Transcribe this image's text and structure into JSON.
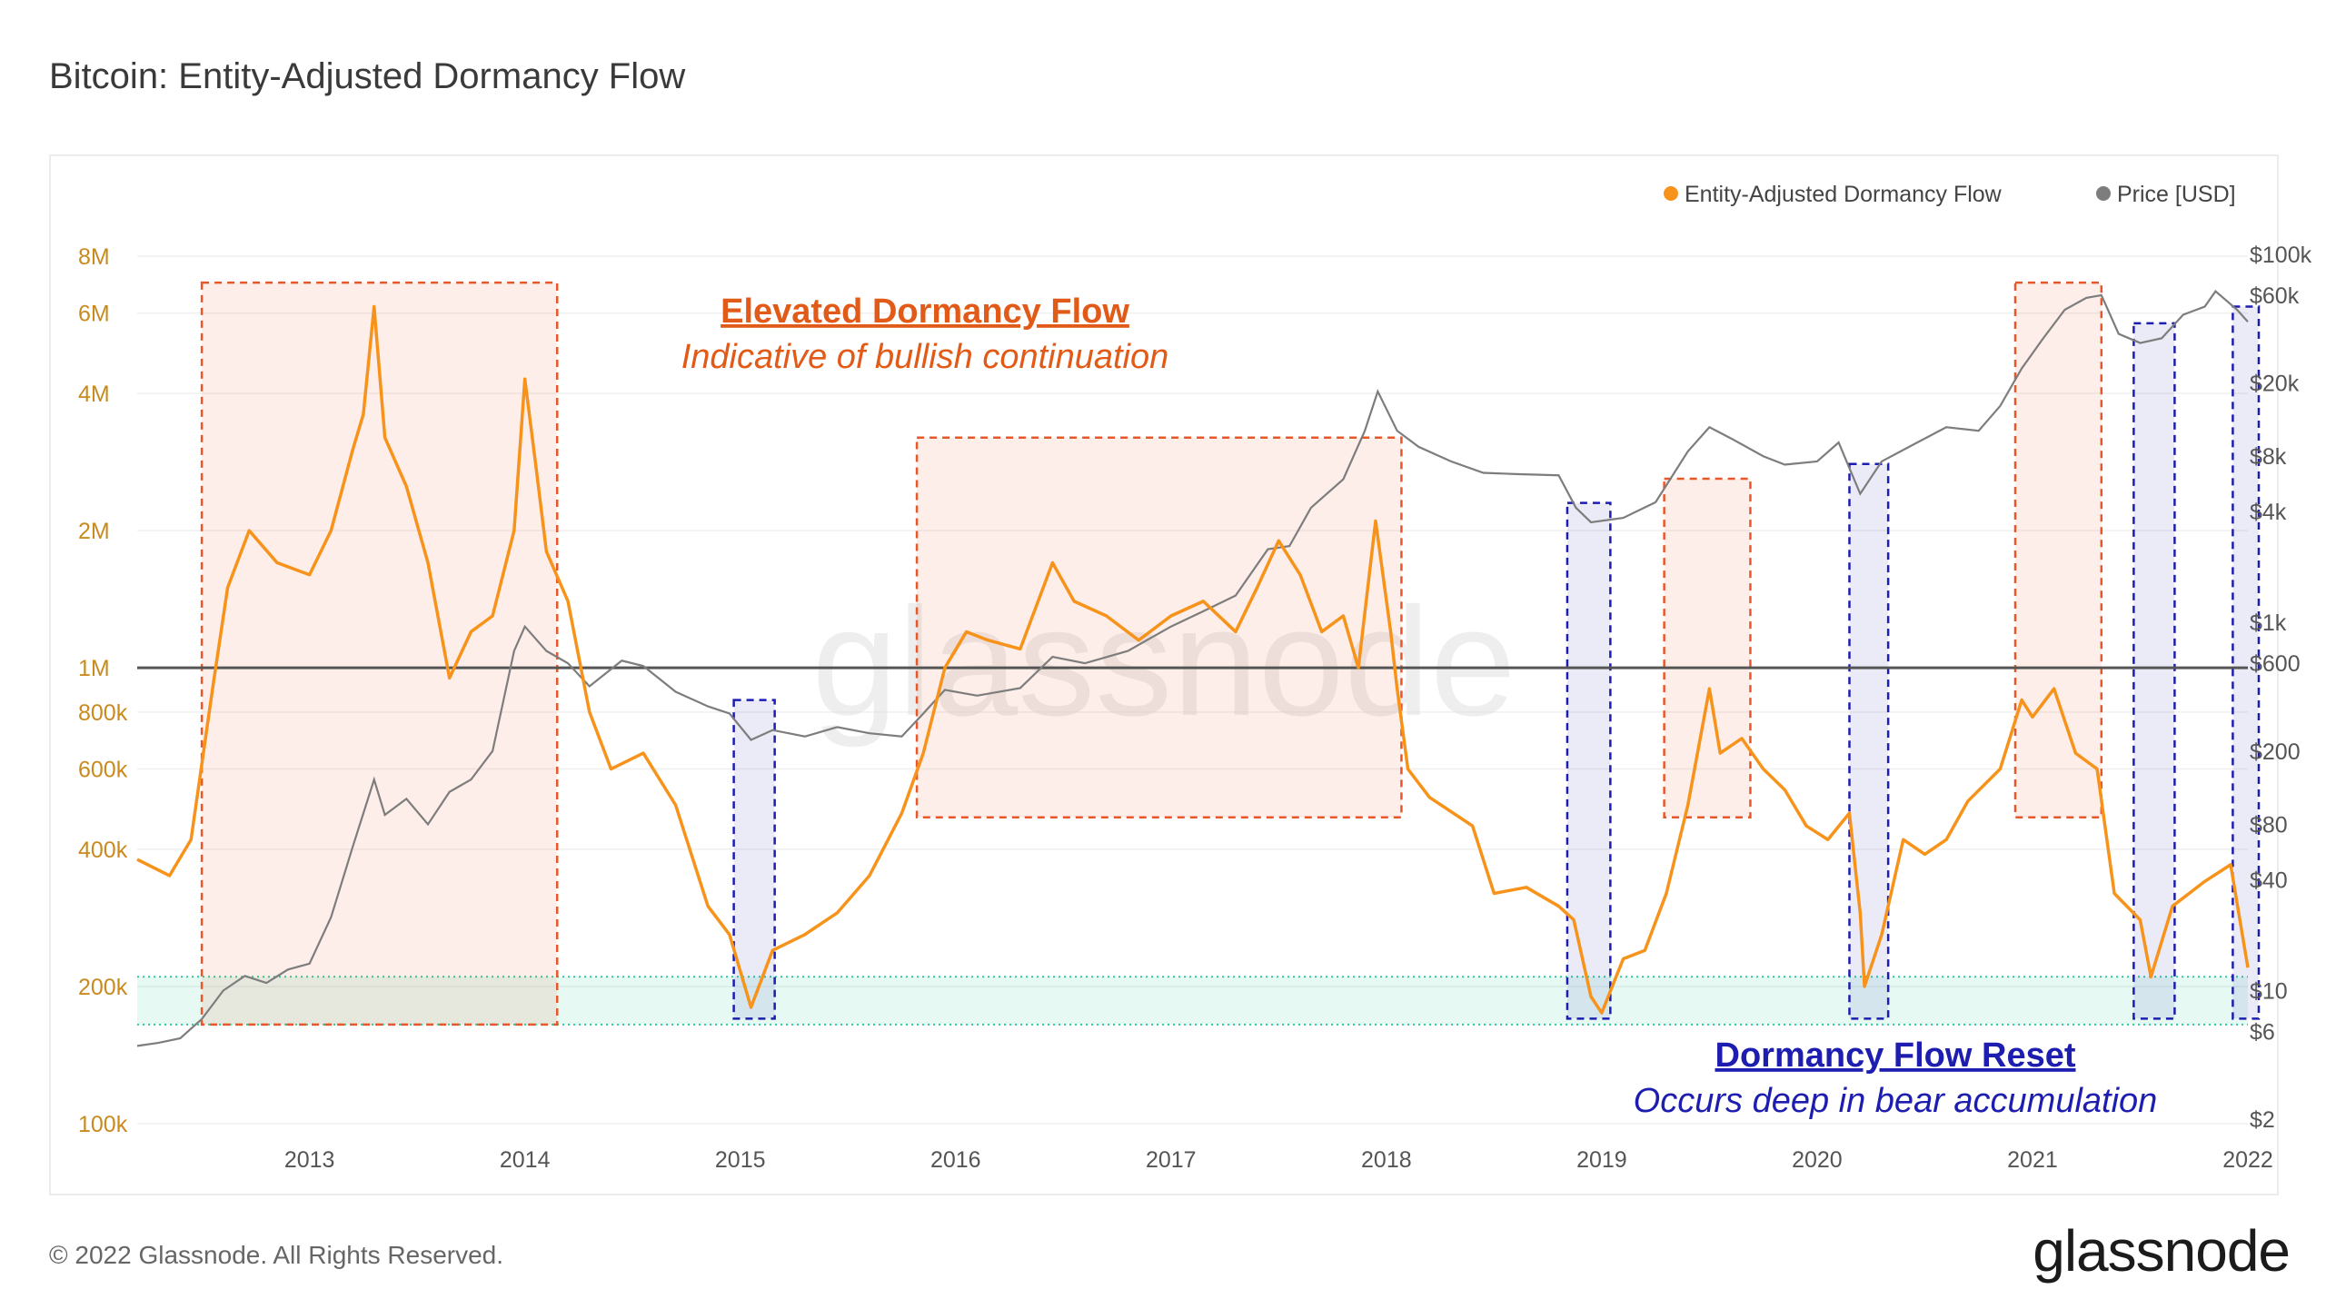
{
  "header": {
    "title": "Bitcoin: Entity-Adjusted Dormancy Flow"
  },
  "footer": {
    "copyright": "© 2022 Glassnode. All Rights Reserved.",
    "brand": "glassnode"
  },
  "watermark": "glassnode",
  "colors": {
    "dormancy": "#f7931a",
    "price": "#7d7d7d",
    "elevated_box": "#e8572a",
    "reset_box": "#1d1db0",
    "elevated_label": "#e15a17",
    "reset_label": "#1d1db0",
    "accum_band": "#2ecc9a"
  },
  "chart_data": {
    "type": "line",
    "legend": {
      "placement": "top-right",
      "items": [
        "Entity-Adjusted Dormancy Flow",
        "Price [USD]"
      ]
    },
    "x_axis": {
      "range": [
        2012.2,
        2022.0
      ],
      "ticks": [
        "2013",
        "2014",
        "2015",
        "2016",
        "2017",
        "2018",
        "2019",
        "2020",
        "2021",
        "2022"
      ]
    },
    "y_left": {
      "scale": "log",
      "range": [
        100000,
        8000000
      ],
      "ticks": [
        "100k",
        "200k",
        "400k",
        "600k",
        "800k",
        "1M",
        "2M",
        "4M",
        "6M",
        "8M"
      ]
    },
    "y_right": {
      "scale": "log",
      "range": [
        2,
        100000
      ],
      "ticks": [
        "$2",
        "$6",
        "$10",
        "$40",
        "$80",
        "$200",
        "$600",
        "$1k",
        "$4k",
        "$8k",
        "$20k",
        "$60k",
        "$100k"
      ]
    },
    "reference_line": {
      "axis": "left",
      "value": 1000000
    },
    "accumulation_band": {
      "axis": "left",
      "range": [
        165000,
        210000
      ]
    },
    "series": [
      {
        "name": "Entity-Adjusted Dormancy Flow",
        "axis": "left",
        "points": [
          [
            2012.2,
            380000
          ],
          [
            2012.35,
            350000
          ],
          [
            2012.45,
            420000
          ],
          [
            2012.55,
            900000
          ],
          [
            2012.62,
            1500000
          ],
          [
            2012.72,
            2000000
          ],
          [
            2012.85,
            1700000
          ],
          [
            2013.0,
            1600000
          ],
          [
            2013.1,
            2000000
          ],
          [
            2013.2,
            3000000
          ],
          [
            2013.25,
            3600000
          ],
          [
            2013.3,
            6200000
          ],
          [
            2013.35,
            3200000
          ],
          [
            2013.45,
            2500000
          ],
          [
            2013.55,
            1700000
          ],
          [
            2013.65,
            950000
          ],
          [
            2013.75,
            1200000
          ],
          [
            2013.85,
            1300000
          ],
          [
            2013.95,
            2000000
          ],
          [
            2014.0,
            4300000
          ],
          [
            2014.05,
            2800000
          ],
          [
            2014.1,
            1800000
          ],
          [
            2014.2,
            1400000
          ],
          [
            2014.3,
            800000
          ],
          [
            2014.4,
            600000
          ],
          [
            2014.55,
            650000
          ],
          [
            2014.7,
            500000
          ],
          [
            2014.85,
            300000
          ],
          [
            2014.95,
            260000
          ],
          [
            2015.05,
            180000
          ],
          [
            2015.15,
            240000
          ],
          [
            2015.3,
            260000
          ],
          [
            2015.45,
            290000
          ],
          [
            2015.6,
            350000
          ],
          [
            2015.75,
            480000
          ],
          [
            2015.85,
            650000
          ],
          [
            2015.95,
            1000000
          ],
          [
            2016.05,
            1200000
          ],
          [
            2016.15,
            1150000
          ],
          [
            2016.3,
            1100000
          ],
          [
            2016.45,
            1700000
          ],
          [
            2016.55,
            1400000
          ],
          [
            2016.7,
            1300000
          ],
          [
            2016.85,
            1150000
          ],
          [
            2017.0,
            1300000
          ],
          [
            2017.15,
            1400000
          ],
          [
            2017.3,
            1200000
          ],
          [
            2017.4,
            1500000
          ],
          [
            2017.5,
            1900000
          ],
          [
            2017.6,
            1600000
          ],
          [
            2017.7,
            1200000
          ],
          [
            2017.8,
            1300000
          ],
          [
            2017.87,
            1000000
          ],
          [
            2017.95,
            2100000
          ],
          [
            2018.02,
            1200000
          ],
          [
            2018.05,
            900000
          ],
          [
            2018.1,
            600000
          ],
          [
            2018.2,
            520000
          ],
          [
            2018.4,
            450000
          ],
          [
            2018.5,
            320000
          ],
          [
            2018.65,
            330000
          ],
          [
            2018.8,
            300000
          ],
          [
            2018.87,
            280000
          ],
          [
            2018.95,
            190000
          ],
          [
            2019.0,
            175000
          ],
          [
            2019.1,
            230000
          ],
          [
            2019.2,
            240000
          ],
          [
            2019.3,
            320000
          ],
          [
            2019.4,
            500000
          ],
          [
            2019.5,
            900000
          ],
          [
            2019.55,
            650000
          ],
          [
            2019.65,
            700000
          ],
          [
            2019.75,
            600000
          ],
          [
            2019.85,
            540000
          ],
          [
            2019.95,
            450000
          ],
          [
            2020.05,
            420000
          ],
          [
            2020.15,
            480000
          ],
          [
            2020.2,
            290000
          ],
          [
            2020.22,
            200000
          ],
          [
            2020.3,
            260000
          ],
          [
            2020.4,
            420000
          ],
          [
            2020.5,
            390000
          ],
          [
            2020.6,
            420000
          ],
          [
            2020.7,
            510000
          ],
          [
            2020.85,
            600000
          ],
          [
            2020.95,
            850000
          ],
          [
            2021.0,
            780000
          ],
          [
            2021.1,
            900000
          ],
          [
            2021.2,
            650000
          ],
          [
            2021.3,
            600000
          ],
          [
            2021.38,
            320000
          ],
          [
            2021.5,
            280000
          ],
          [
            2021.55,
            210000
          ],
          [
            2021.65,
            300000
          ],
          [
            2021.8,
            340000
          ],
          [
            2021.92,
            370000
          ],
          [
            2022.0,
            220000
          ]
        ]
      },
      {
        "name": "Price [USD]",
        "axis": "right",
        "points": [
          [
            2012.2,
            5
          ],
          [
            2012.3,
            5.2
          ],
          [
            2012.4,
            5.5
          ],
          [
            2012.5,
            7
          ],
          [
            2012.6,
            10
          ],
          [
            2012.7,
            12
          ],
          [
            2012.8,
            11
          ],
          [
            2012.9,
            13
          ],
          [
            2013.0,
            14
          ],
          [
            2013.1,
            25
          ],
          [
            2013.2,
            60
          ],
          [
            2013.3,
            140
          ],
          [
            2013.35,
            90
          ],
          [
            2013.45,
            110
          ],
          [
            2013.55,
            80
          ],
          [
            2013.65,
            120
          ],
          [
            2013.75,
            140
          ],
          [
            2013.85,
            200
          ],
          [
            2013.95,
            700
          ],
          [
            2014.0,
            950
          ],
          [
            2014.1,
            700
          ],
          [
            2014.2,
            600
          ],
          [
            2014.3,
            450
          ],
          [
            2014.45,
            620
          ],
          [
            2014.55,
            580
          ],
          [
            2014.7,
            420
          ],
          [
            2014.85,
            350
          ],
          [
            2014.95,
            320
          ],
          [
            2015.05,
            230
          ],
          [
            2015.15,
            260
          ],
          [
            2015.3,
            240
          ],
          [
            2015.45,
            270
          ],
          [
            2015.6,
            250
          ],
          [
            2015.75,
            240
          ],
          [
            2015.85,
            320
          ],
          [
            2015.95,
            430
          ],
          [
            2016.1,
            400
          ],
          [
            2016.3,
            440
          ],
          [
            2016.45,
            650
          ],
          [
            2016.6,
            600
          ],
          [
            2016.8,
            700
          ],
          [
            2017.0,
            950
          ],
          [
            2017.15,
            1150
          ],
          [
            2017.3,
            1400
          ],
          [
            2017.45,
            2500
          ],
          [
            2017.55,
            2600
          ],
          [
            2017.65,
            4200
          ],
          [
            2017.8,
            6000
          ],
          [
            2017.9,
            11000
          ],
          [
            2017.96,
            18000
          ],
          [
            2018.05,
            11000
          ],
          [
            2018.15,
            9000
          ],
          [
            2018.3,
            7500
          ],
          [
            2018.45,
            6500
          ],
          [
            2018.6,
            6400
          ],
          [
            2018.8,
            6300
          ],
          [
            2018.88,
            4200
          ],
          [
            2018.95,
            3500
          ],
          [
            2019.1,
            3700
          ],
          [
            2019.25,
            4500
          ],
          [
            2019.4,
            8500
          ],
          [
            2019.5,
            11500
          ],
          [
            2019.6,
            10000
          ],
          [
            2019.75,
            8000
          ],
          [
            2019.85,
            7200
          ],
          [
            2020.0,
            7500
          ],
          [
            2020.1,
            9500
          ],
          [
            2020.2,
            5000
          ],
          [
            2020.3,
            7500
          ],
          [
            2020.45,
            9300
          ],
          [
            2020.6,
            11500
          ],
          [
            2020.75,
            11000
          ],
          [
            2020.85,
            15000
          ],
          [
            2020.95,
            24000
          ],
          [
            2021.05,
            35000
          ],
          [
            2021.15,
            50000
          ],
          [
            2021.25,
            58000
          ],
          [
            2021.32,
            60000
          ],
          [
            2021.4,
            37000
          ],
          [
            2021.5,
            33000
          ],
          [
            2021.6,
            35000
          ],
          [
            2021.7,
            47000
          ],
          [
            2021.8,
            52000
          ],
          [
            2021.85,
            63000
          ],
          [
            2021.95,
            50000
          ],
          [
            2022.0,
            43000
          ]
        ]
      }
    ],
    "highlights": {
      "elevated": [
        [
          2012.5,
          2014.15
        ],
        [
          2015.82,
          2018.07
        ],
        [
          2019.29,
          2019.69
        ],
        [
          2020.92,
          2021.32
        ]
      ],
      "reset": [
        [
          2014.97,
          2015.16
        ],
        [
          2018.84,
          2019.04
        ],
        [
          2020.15,
          2020.33
        ],
        [
          2021.47,
          2021.66
        ],
        [
          2021.93,
          2022.12
        ]
      ]
    },
    "annotations": {
      "elevated_title": "Elevated Dormancy Flow",
      "elevated_subtitle": "Indicative of bullish continuation",
      "reset_title": "Dormancy Flow Reset",
      "reset_subtitle": "Occurs deep in bear accumulation"
    }
  }
}
